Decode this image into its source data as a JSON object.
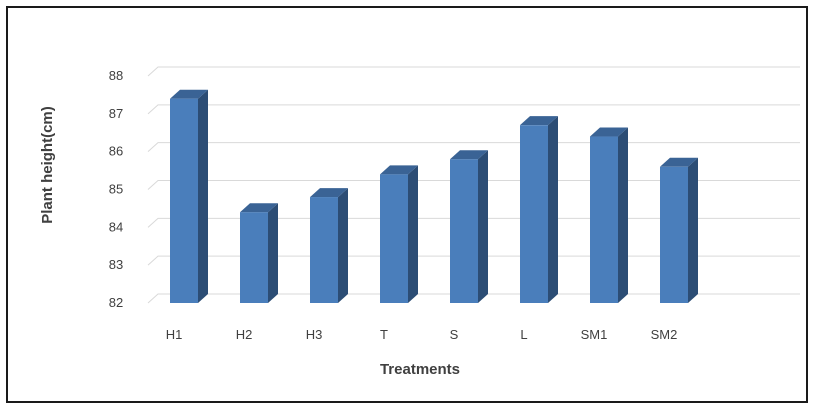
{
  "chart_data": {
    "type": "bar",
    "style": "3d-column",
    "categories": [
      "H1",
      "H2",
      "H3",
      "T",
      "S",
      "L",
      "SM1",
      "SM2"
    ],
    "values": [
      87.4,
      84.4,
      84.8,
      85.4,
      85.8,
      86.7,
      86.4,
      85.6
    ],
    "xlabel": "Treatments",
    "ylabel": "Plant height(cm)",
    "ylim": [
      82,
      88
    ],
    "yticks": [
      82,
      83,
      84,
      85,
      86,
      87,
      88
    ],
    "grid": true,
    "legend": "none",
    "colors": {
      "front": "#4a7ebb",
      "side": "#2c4d75",
      "top": "#3a6395",
      "grid": "#d9d9d9",
      "text": "#404040"
    }
  }
}
